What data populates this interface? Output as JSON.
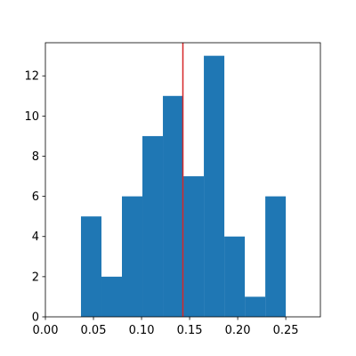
{
  "chart_data": {
    "type": "histogram",
    "bins": [
      0.037,
      0.0583,
      0.0796,
      0.1009,
      0.1222,
      0.1435,
      0.1648,
      0.1861,
      0.2074,
      0.2287,
      0.25
    ],
    "counts": [
      5,
      2,
      6,
      9,
      11,
      7,
      13,
      4,
      1,
      6
    ],
    "color": "#1f77b4",
    "reference_line": {
      "x": 0.143,
      "color": "#d62728"
    },
    "xlim": [
      0,
      0.286
    ],
    "ylim": [
      0,
      13.65
    ],
    "xticks": [
      {
        "value": 0,
        "label": "0.00"
      },
      0.05,
      {
        "value": 0.1,
        "label": "0.10"
      },
      0.15,
      {
        "value": 0.2,
        "label": "0.20"
      },
      0.25
    ],
    "yticks": [
      0,
      2,
      4,
      6,
      8,
      10,
      12
    ]
  }
}
